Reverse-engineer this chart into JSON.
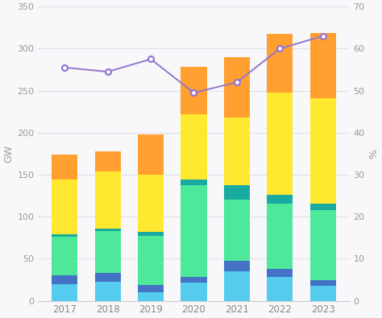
{
  "years": [
    2017,
    2018,
    2019,
    2020,
    2021,
    2022,
    2023
  ],
  "segments": {
    "light_blue": [
      20,
      23,
      10,
      22,
      35,
      28,
      18
    ],
    "dark_blue": [
      10,
      10,
      9,
      6,
      13,
      10,
      7
    ],
    "green": [
      46,
      50,
      58,
      110,
      72,
      78,
      83
    ],
    "teal": [
      3,
      3,
      5,
      6,
      18,
      10,
      8
    ],
    "yellow": [
      65,
      68,
      68,
      78,
      80,
      122,
      125
    ],
    "orange": [
      30,
      24,
      48,
      56,
      72,
      70,
      78
    ]
  },
  "line_values": [
    55.5,
    54.5,
    57.5,
    49.5,
    52.0,
    60.0,
    63.0
  ],
  "colors": {
    "light_blue": "#55CCEE",
    "dark_blue": "#4472C4",
    "green": "#4DE89A",
    "teal": "#1AABA0",
    "yellow": "#FFE930",
    "orange": "#FFA030",
    "line": "#9575CD"
  },
  "ylim_left": [
    0,
    350
  ],
  "ylim_right": [
    0,
    70
  ],
  "yticks_left": [
    0,
    50,
    100,
    150,
    200,
    250,
    300,
    350
  ],
  "yticks_right": [
    0,
    10,
    20,
    30,
    40,
    50,
    60,
    70
  ],
  "ylabel_left": "GW",
  "ylabel_right": "%",
  "bg_color": "#F8F8FA",
  "grid_color": "#E0E0E8"
}
